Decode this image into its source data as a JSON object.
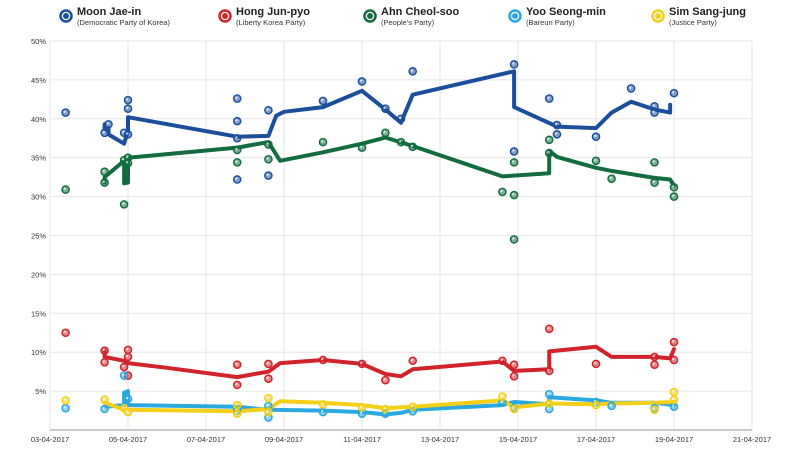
{
  "chart_data": {
    "type": "line",
    "title": "",
    "xlabel": "",
    "ylabel": "",
    "xlim": [
      "2017-04-03",
      "2017-04-21"
    ],
    "ylim": [
      0,
      50
    ],
    "grid": true,
    "legend_position": "top",
    "x_ticks": [
      "03-04-2017",
      "05-04-2017",
      "07-04-2017",
      "09-04-2017",
      "11-04-2017",
      "13-04-2017",
      "15-04-2017",
      "17-04-2017",
      "19-04-2017",
      "21-04-2017"
    ],
    "y_ticks": [
      "5%",
      "10%",
      "15%",
      "20%",
      "25%",
      "30%",
      "35%",
      "40%",
      "45%",
      "50%"
    ],
    "y_tick_values": [
      5,
      10,
      15,
      20,
      25,
      30,
      35,
      40,
      45,
      50
    ],
    "series": [
      {
        "name": "Moon Jae-in",
        "party": "(Democratic Party of Korea)",
        "color": "#1b4f9c",
        "line": [
          [
            "2017-04-04.4",
            39.3
          ],
          [
            "2017-04-04.4",
            38.6
          ],
          [
            "2017-04-04.5",
            38.8
          ],
          [
            "2017-04-04.5",
            38.0
          ],
          [
            "2017-04-04.9",
            36.8
          ],
          [
            "2017-04-05",
            38.5
          ],
          [
            "2017-04-05",
            40.2
          ],
          [
            "2017-04-07.8",
            37.7
          ],
          [
            "2017-04-08.6",
            37.8
          ],
          [
            "2017-04-08.8",
            40.4
          ],
          [
            "2017-04-09",
            40.9
          ],
          [
            "2017-04-10",
            41.5
          ],
          [
            "2017-04-11",
            43.6
          ],
          [
            "2017-04-11.6",
            41.2
          ],
          [
            "2017-04-12",
            39.5
          ],
          [
            "2017-04-12.3",
            43.1
          ],
          [
            "2017-04-14.9",
            46.1
          ],
          [
            "2017-04-14.9",
            41.5
          ],
          [
            "2017-04-16",
            39.0
          ],
          [
            "2017-04-17",
            38.8
          ],
          [
            "2017-04-17.4",
            40.8
          ],
          [
            "2017-04-17.9",
            42.2
          ],
          [
            "2017-04-18.5",
            41.2
          ],
          [
            "2017-04-18.9",
            40.8
          ],
          [
            "2017-04-18.9",
            41.8
          ]
        ],
        "points": [
          [
            "2017-04-03.4",
            40.8
          ],
          [
            "2017-04-04.4",
            38.2
          ],
          [
            "2017-04-04.5",
            39.3
          ],
          [
            "2017-04-04.9",
            38.2
          ],
          [
            "2017-04-05",
            42.4
          ],
          [
            "2017-04-05",
            41.3
          ],
          [
            "2017-04-05",
            38.0
          ],
          [
            "2017-04-07.8",
            42.6
          ],
          [
            "2017-04-07.8",
            39.7
          ],
          [
            "2017-04-07.8",
            37.5
          ],
          [
            "2017-04-07.8",
            32.2
          ],
          [
            "2017-04-08.6",
            41.1
          ],
          [
            "2017-04-08.6",
            32.7
          ],
          [
            "2017-04-10",
            42.3
          ],
          [
            "2017-04-11",
            44.8
          ],
          [
            "2017-04-11.6",
            41.3
          ],
          [
            "2017-04-12",
            40.0
          ],
          [
            "2017-04-12.3",
            46.1
          ],
          [
            "2017-04-14.9",
            47.0
          ],
          [
            "2017-04-14.9",
            35.8
          ],
          [
            "2017-04-15.8",
            42.6
          ],
          [
            "2017-04-16",
            39.2
          ],
          [
            "2017-04-16",
            38.0
          ],
          [
            "2017-04-17",
            37.7
          ],
          [
            "2017-04-17.9",
            43.9
          ],
          [
            "2017-04-18.5",
            41.6
          ],
          [
            "2017-04-18.5",
            40.8
          ],
          [
            "2017-04-19",
            43.3
          ]
        ]
      },
      {
        "name": "Hong Jun-pyo",
        "party": "(Liberty Korea Party)",
        "color": "#d0232a",
        "line": [
          [
            "2017-04-04.4",
            10.2
          ],
          [
            "2017-04-04.4",
            9.4
          ],
          [
            "2017-04-04.9",
            8.9
          ],
          [
            "2017-04-05",
            8.6
          ],
          [
            "2017-04-06",
            8.0
          ],
          [
            "2017-04-07.8",
            6.8
          ],
          [
            "2017-04-08.6",
            7.5
          ],
          [
            "2017-04-08.9",
            8.6
          ],
          [
            "2017-04-10",
            9.0
          ],
          [
            "2017-04-11",
            8.5
          ],
          [
            "2017-04-11.6",
            7.2
          ],
          [
            "2017-04-12",
            6.9
          ],
          [
            "2017-04-12.3",
            7.8
          ],
          [
            "2017-04-14.6",
            8.8
          ],
          [
            "2017-04-14.9",
            7.6
          ],
          [
            "2017-04-15.8",
            7.8
          ],
          [
            "2017-04-15.8",
            10.1
          ],
          [
            "2017-04-17",
            10.7
          ],
          [
            "2017-04-17.4",
            9.4
          ],
          [
            "2017-04-18.5",
            9.4
          ],
          [
            "2017-04-18.9",
            9.2
          ],
          [
            "2017-04-19",
            10.4
          ]
        ],
        "points": [
          [
            "2017-04-03.4",
            12.5
          ],
          [
            "2017-04-04.4",
            10.2
          ],
          [
            "2017-04-04.4",
            8.7
          ],
          [
            "2017-04-04.9",
            8.1
          ],
          [
            "2017-04-05",
            10.3
          ],
          [
            "2017-04-05",
            9.4
          ],
          [
            "2017-04-05",
            7.0
          ],
          [
            "2017-04-07.8",
            8.4
          ],
          [
            "2017-04-07.8",
            5.8
          ],
          [
            "2017-04-08.6",
            8.5
          ],
          [
            "2017-04-08.6",
            6.6
          ],
          [
            "2017-04-10",
            9.0
          ],
          [
            "2017-04-11",
            8.5
          ],
          [
            "2017-04-11.6",
            6.4
          ],
          [
            "2017-04-12.3",
            8.9
          ],
          [
            "2017-04-14.6",
            8.9
          ],
          [
            "2017-04-14.9",
            8.4
          ],
          [
            "2017-04-14.9",
            6.9
          ],
          [
            "2017-04-15.8",
            13.0
          ],
          [
            "2017-04-15.8",
            7.6
          ],
          [
            "2017-04-17",
            8.5
          ],
          [
            "2017-04-18.5",
            9.4
          ],
          [
            "2017-04-18.5",
            8.4
          ],
          [
            "2017-04-19",
            11.3
          ],
          [
            "2017-04-19",
            9.0
          ]
        ]
      },
      {
        "name": "Ahn Cheol-soo",
        "party": "(People's Party)",
        "color": "#136c3f",
        "line": [
          [
            "2017-04-04.4",
            31.8
          ],
          [
            "2017-04-04.4",
            32.5
          ],
          [
            "2017-04-04.9",
            34.6
          ],
          [
            "2017-04-04.9",
            31.7
          ],
          [
            "2017-04-05",
            31.8
          ],
          [
            "2017-04-05",
            35.0
          ],
          [
            "2017-04-07.8",
            36.3
          ],
          [
            "2017-04-08.6",
            37.0
          ],
          [
            "2017-04-08.9",
            34.6
          ],
          [
            "2017-04-10",
            35.7
          ],
          [
            "2017-04-11",
            36.8
          ],
          [
            "2017-04-11.6",
            37.6
          ],
          [
            "2017-04-12.3",
            36.5
          ],
          [
            "2017-04-14.6",
            32.6
          ],
          [
            "2017-04-15.8",
            33.0
          ],
          [
            "2017-04-15.8",
            35.9
          ],
          [
            "2017-04-16",
            35.1
          ],
          [
            "2017-04-17",
            33.7
          ],
          [
            "2017-04-17.4",
            33.3
          ],
          [
            "2017-04-18.5",
            32.4
          ],
          [
            "2017-04-18.9",
            32.2
          ],
          [
            "2017-04-19",
            31.4
          ]
        ],
        "points": [
          [
            "2017-04-03.4",
            30.9
          ],
          [
            "2017-04-04.4",
            33.2
          ],
          [
            "2017-04-04.4",
            31.8
          ],
          [
            "2017-04-04.9",
            34.7
          ],
          [
            "2017-04-04.9",
            29.0
          ],
          [
            "2017-04-05",
            35.0
          ],
          [
            "2017-04-05",
            34.3
          ],
          [
            "2017-04-07.8",
            36.0
          ],
          [
            "2017-04-07.8",
            34.4
          ],
          [
            "2017-04-08.6",
            36.7
          ],
          [
            "2017-04-08.6",
            34.8
          ],
          [
            "2017-04-10",
            37.0
          ],
          [
            "2017-04-11",
            36.3
          ],
          [
            "2017-04-11.6",
            38.2
          ],
          [
            "2017-04-12",
            37.0
          ],
          [
            "2017-04-12.3",
            36.4
          ],
          [
            "2017-04-14.6",
            30.6
          ],
          [
            "2017-04-14.9",
            34.4
          ],
          [
            "2017-04-14.9",
            30.2
          ],
          [
            "2017-04-14.9",
            24.5
          ],
          [
            "2017-04-15.8",
            37.3
          ],
          [
            "2017-04-15.8",
            35.6
          ],
          [
            "2017-04-17",
            34.6
          ],
          [
            "2017-04-17.4",
            32.3
          ],
          [
            "2017-04-18.5",
            34.4
          ],
          [
            "2017-04-18.5",
            31.8
          ],
          [
            "2017-04-19",
            31.2
          ],
          [
            "2017-04-19",
            30.0
          ]
        ]
      },
      {
        "name": "Yoo Seong-min",
        "party": "(Bareun Party)",
        "color": "#2ba8df",
        "line": [
          [
            "2017-04-04.4",
            3.0
          ],
          [
            "2017-04-04.9",
            3.2
          ],
          [
            "2017-04-04.9",
            4.8
          ],
          [
            "2017-04-05",
            5.0
          ],
          [
            "2017-04-05",
            3.2
          ],
          [
            "2017-04-07.8",
            3.0
          ],
          [
            "2017-04-08.6",
            2.6
          ],
          [
            "2017-04-10",
            2.5
          ],
          [
            "2017-04-11",
            2.3
          ],
          [
            "2017-04-11.6",
            2.0
          ],
          [
            "2017-04-12",
            2.2
          ],
          [
            "2017-04-12.3",
            2.6
          ],
          [
            "2017-04-14.6",
            3.2
          ],
          [
            "2017-04-14.9",
            3.6
          ],
          [
            "2017-04-15.8",
            3.3
          ],
          [
            "2017-04-15.8",
            4.2
          ],
          [
            "2017-04-17",
            3.8
          ],
          [
            "2017-04-17.4",
            3.5
          ],
          [
            "2017-04-18.5",
            3.5
          ],
          [
            "2017-04-19",
            3.2
          ]
        ],
        "points": [
          [
            "2017-04-03.4",
            2.8
          ],
          [
            "2017-04-04.4",
            2.7
          ],
          [
            "2017-04-04.9",
            7.0
          ],
          [
            "2017-04-05",
            4.0
          ],
          [
            "2017-04-07.8",
            2.5
          ],
          [
            "2017-04-08.6",
            3.1
          ],
          [
            "2017-04-08.6",
            1.6
          ],
          [
            "2017-04-10",
            2.3
          ],
          [
            "2017-04-11",
            2.1
          ],
          [
            "2017-04-11.6",
            2.1
          ],
          [
            "2017-04-12.3",
            2.4
          ],
          [
            "2017-04-14.6",
            3.5
          ],
          [
            "2017-04-14.9",
            2.8
          ],
          [
            "2017-04-15.8",
            4.6
          ],
          [
            "2017-04-15.8",
            2.7
          ],
          [
            "2017-04-17",
            3.6
          ],
          [
            "2017-04-17.4",
            3.1
          ],
          [
            "2017-04-18.5",
            2.8
          ],
          [
            "2017-04-19",
            3.0
          ]
        ]
      },
      {
        "name": "Sim Sang-jung",
        "party": "(Justice Party)",
        "color": "#f3cf1a",
        "line": [
          [
            "2017-04-04.4",
            3.5
          ],
          [
            "2017-04-04.9",
            2.6
          ],
          [
            "2017-04-05",
            2.6
          ],
          [
            "2017-04-07.8",
            2.4
          ],
          [
            "2017-04-08.6",
            2.7
          ],
          [
            "2017-04-08.9",
            3.7
          ],
          [
            "2017-04-10",
            3.5
          ],
          [
            "2017-04-11",
            3.2
          ],
          [
            "2017-04-11.6",
            2.8
          ],
          [
            "2017-04-12",
            2.9
          ],
          [
            "2017-04-12.3",
            3.0
          ],
          [
            "2017-04-14.6",
            3.8
          ],
          [
            "2017-04-14.9",
            2.9
          ],
          [
            "2017-04-15.8",
            3.4
          ],
          [
            "2017-04-17",
            3.3
          ],
          [
            "2017-04-17.4",
            3.4
          ],
          [
            "2017-04-18.5",
            3.5
          ],
          [
            "2017-04-19",
            3.6
          ]
        ],
        "points": [
          [
            "2017-04-03.4",
            3.8
          ],
          [
            "2017-04-04.4",
            3.9
          ],
          [
            "2017-04-04.9",
            2.8
          ],
          [
            "2017-04-05",
            2.3
          ],
          [
            "2017-04-07.8",
            3.2
          ],
          [
            "2017-04-07.8",
            2.1
          ],
          [
            "2017-04-08.6",
            4.1
          ],
          [
            "2017-04-08.6",
            2.3
          ],
          [
            "2017-04-10",
            3.3
          ],
          [
            "2017-04-11",
            2.9
          ],
          [
            "2017-04-11.6",
            2.7
          ],
          [
            "2017-04-12.3",
            3.0
          ],
          [
            "2017-04-14.6",
            4.3
          ],
          [
            "2017-04-14.9",
            2.7
          ],
          [
            "2017-04-15.8",
            3.4
          ],
          [
            "2017-04-17",
            3.2
          ],
          [
            "2017-04-18.5",
            2.6
          ],
          [
            "2017-04-19",
            4.9
          ],
          [
            "2017-04-19",
            3.9
          ]
        ]
      }
    ]
  }
}
